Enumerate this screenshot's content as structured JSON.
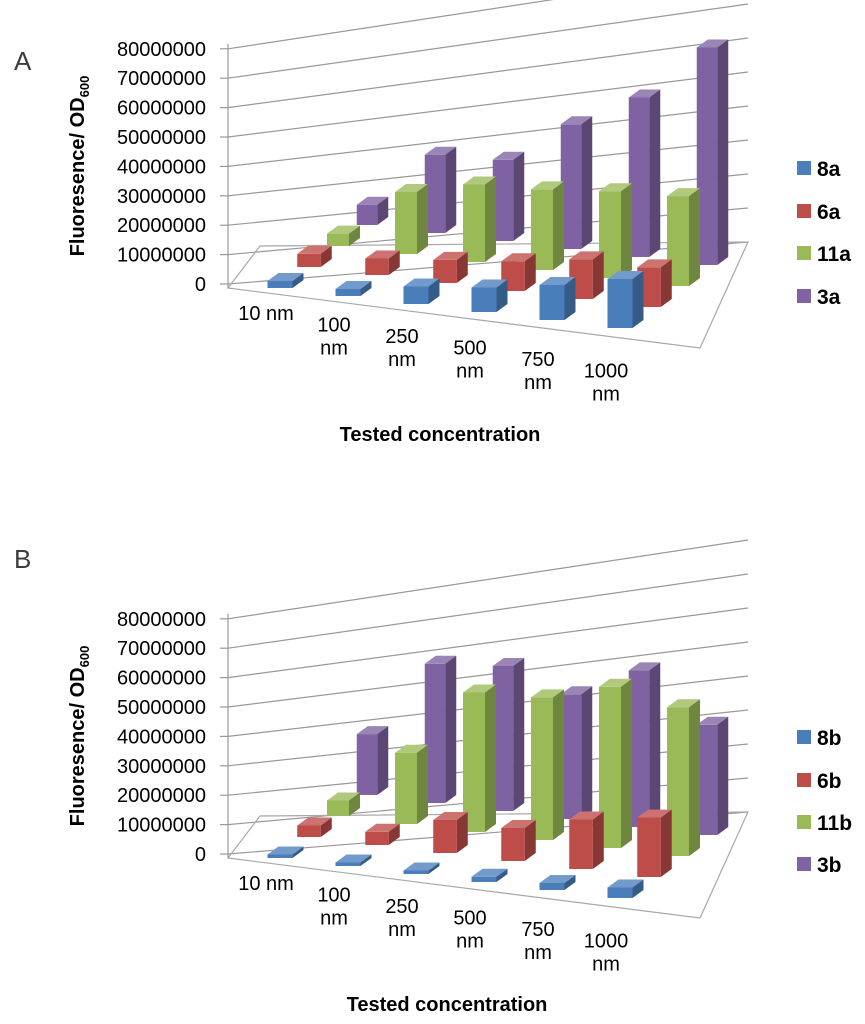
{
  "figure": {
    "background_color": "#ffffff",
    "panel_a_label": "A",
    "panel_b_label": "B"
  },
  "chart_data": [
    {
      "panel_label": "A",
      "type": "bar",
      "projection": "3d",
      "ylabel": "Fluoresence/ OD",
      "ylabel_subscript": "600",
      "xlabel": "Tested concentration",
      "ylim": [
        0,
        80000000
      ],
      "ytick_step": 10000000,
      "yticks": [
        "0",
        "10000000",
        "20000000",
        "30000000",
        "40000000",
        "50000000",
        "60000000",
        "70000000",
        "80000000"
      ],
      "categories": [
        "10 nm",
        "100 nm",
        "250 nm",
        "500 nm",
        "750 nm",
        "1000 nm"
      ],
      "grid": true,
      "legend_position": "right",
      "series": [
        {
          "name": "8a",
          "color": "#4A7EBB",
          "values": [
            2000000,
            2000000,
            5000000,
            7000000,
            10000000,
            14000000
          ]
        },
        {
          "name": "6a",
          "color": "#BE4C48",
          "values": [
            4000000,
            5000000,
            7000000,
            9000000,
            12000000,
            12000000
          ]
        },
        {
          "name": "11a",
          "color": "#9ABA58",
          "values": [
            4000000,
            20000000,
            25000000,
            26000000,
            28000000,
            29000000
          ]
        },
        {
          "name": "3a",
          "color": "#7E62A1",
          "values": [
            7000000,
            27000000,
            28000000,
            43000000,
            55000000,
            75000000
          ]
        }
      ]
    },
    {
      "panel_label": "B",
      "type": "bar",
      "projection": "3d",
      "ylabel": "Fluoresence/ OD",
      "ylabel_subscript": "600",
      "xlabel": "Tested concentration",
      "ylim": [
        0,
        80000000
      ],
      "ytick_step": 10000000,
      "yticks": [
        "0",
        "10000000",
        "20000000",
        "30000000",
        "40000000",
        "50000000",
        "60000000",
        "70000000",
        "80000000"
      ],
      "categories": [
        "10 nm",
        "100 nm",
        "250 nm",
        "500 nm",
        "750 nm",
        "1000 nm"
      ],
      "grid": true,
      "legend_position": "right",
      "series": [
        {
          "name": "8b",
          "color": "#4A7EBB",
          "values": [
            1000000,
            1000000,
            1000000,
            1500000,
            2000000,
            3000000
          ]
        },
        {
          "name": "6b",
          "color": "#BE4C48",
          "values": [
            3500000,
            4000000,
            10000000,
            10000000,
            15000000,
            18000000
          ]
        },
        {
          "name": "11b",
          "color": "#9ABA58",
          "values": [
            5000000,
            23000000,
            45000000,
            46000000,
            52000000,
            48000000
          ]
        },
        {
          "name": "3b",
          "color": "#7E62A1",
          "values": [
            21000000,
            48000000,
            50000000,
            43000000,
            54000000,
            38000000
          ]
        }
      ]
    }
  ]
}
